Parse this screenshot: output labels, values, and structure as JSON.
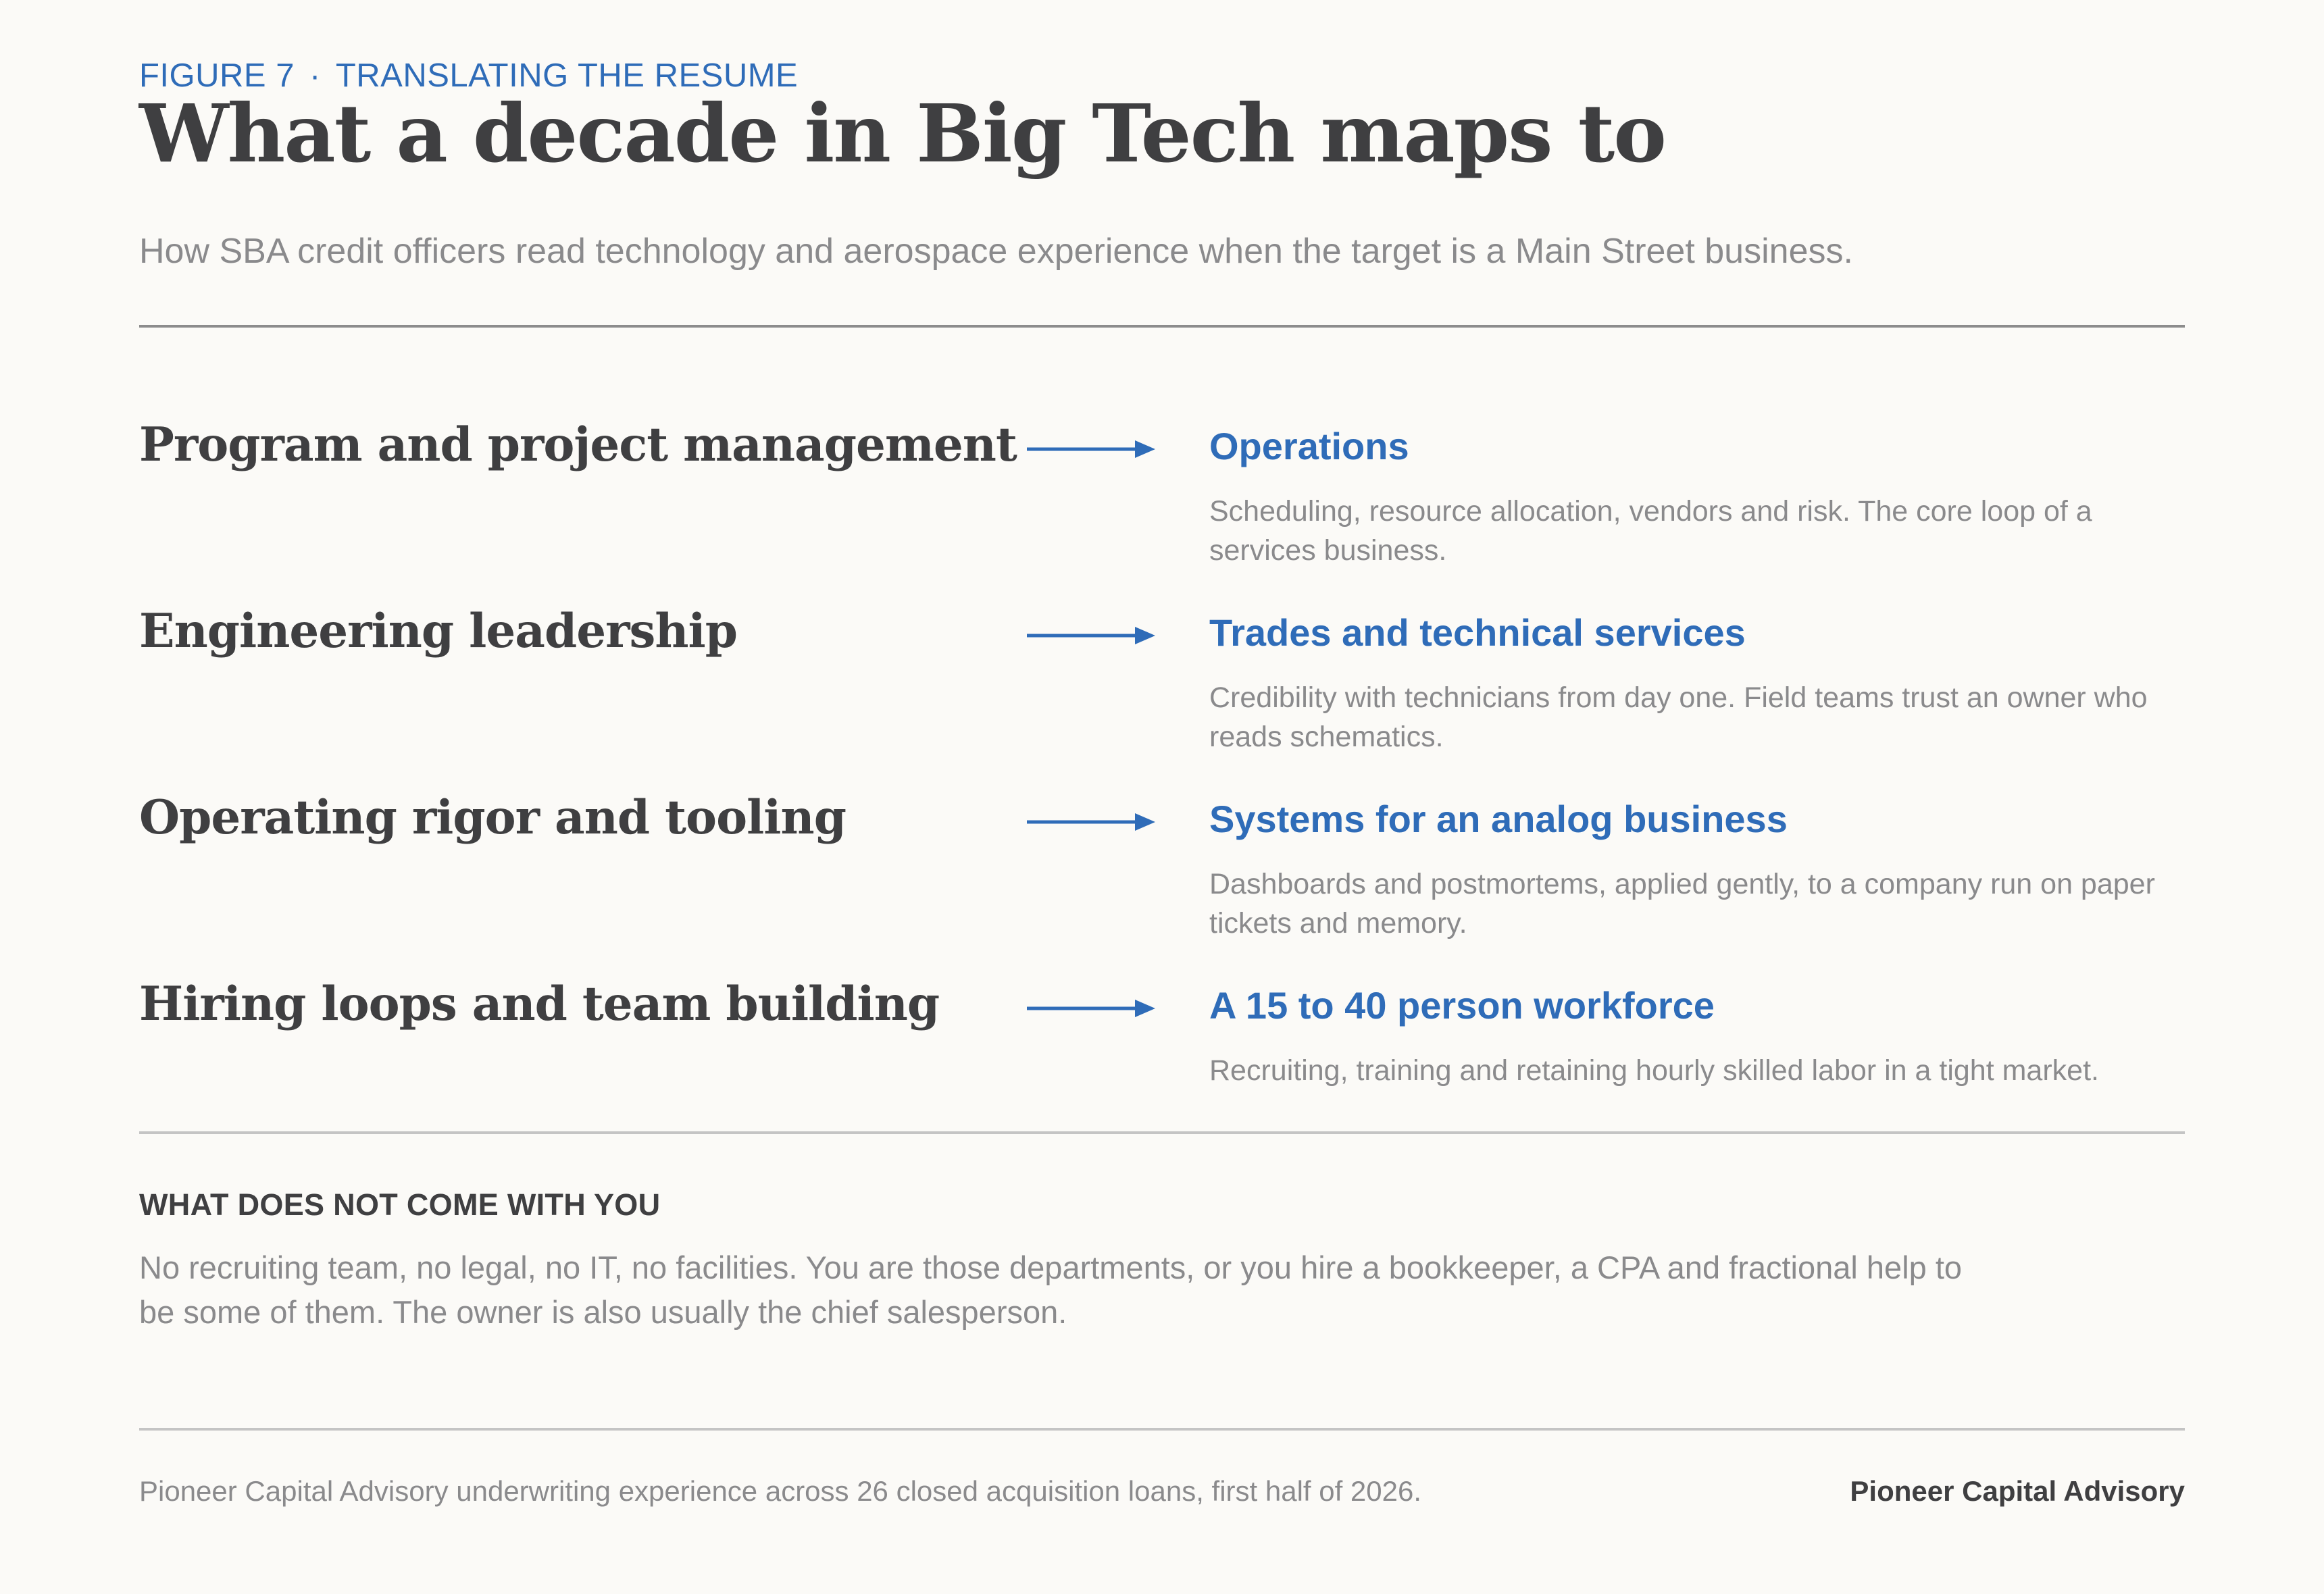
{
  "header": {
    "figure_label": "FIGURE 7",
    "separator": "·",
    "kicker": "TRANSLATING THE RESUME",
    "title": "What a decade in Big Tech maps to",
    "subtitle": "How SBA credit officers read technology and aerospace experience when the target is a Main Street business."
  },
  "mappings": [
    {
      "from": "Program and project management",
      "to": "Operations",
      "description": "Scheduling, resource allocation, vendors and risk. The core loop of a services business."
    },
    {
      "from": "Engineering leadership",
      "to": "Trades and technical services",
      "description": "Credibility with technicians from day one. Field teams trust an owner who reads schematics."
    },
    {
      "from": "Operating rigor and tooling",
      "to": "Systems for an analog business",
      "description": "Dashboards and postmortems, applied gently, to a company run on paper tickets and memory."
    },
    {
      "from": "Hiring loops and team building",
      "to": "A 15 to 40 person workforce",
      "description": "Recruiting, training and retaining hourly skilled labor in a tight market."
    }
  ],
  "note": {
    "heading": "WHAT DOES NOT COME WITH YOU",
    "body": "No recruiting team, no legal, no IT, no facilities. You are those departments, or you hire a bookkeeper, a CPA and fractional help to be some of them. The owner is also usually the chief salesperson."
  },
  "footer": {
    "source": "Pioneer Capital Advisory underwriting experience across 26 closed acquisition loans, first half of 2026.",
    "brand": "Pioneer Capital Advisory"
  },
  "colors": {
    "accent": "#2f6cb8",
    "heading": "#3f3f41",
    "muted": "#8a8a8c",
    "background": "#fbfaf7"
  },
  "icons": {
    "mapping_arrow": "arrow-right-icon"
  }
}
